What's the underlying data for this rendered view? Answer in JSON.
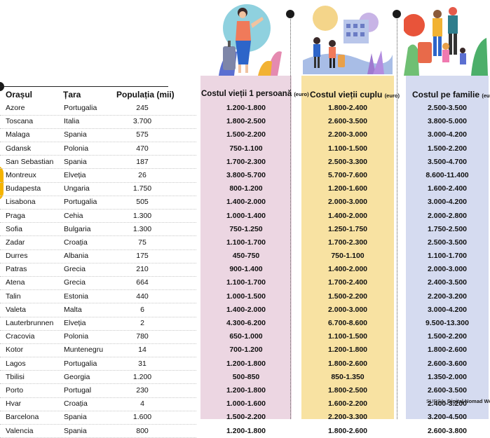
{
  "headers": {
    "city": "Orașul",
    "country": "Țara",
    "population": "Populația (mii)",
    "single": "Costul vieții 1 persoană",
    "couple": "Costul vieții cuplu",
    "family": "Costul pe familie",
    "unit": "(euro)"
  },
  "rows": [
    {
      "city": "Azore",
      "country": "Portugalia",
      "population": "245",
      "single": "1.200-1.800",
      "couple": "1.800-2.400",
      "family": "2.500-3.500"
    },
    {
      "city": "Toscana",
      "country": "Italia",
      "population": "3.700",
      "single": "1.800-2.500",
      "couple": "2.600-3.500",
      "family": "3.800-5.000"
    },
    {
      "city": "Malaga",
      "country": "Spania",
      "population": "575",
      "single": "1.500-2.200",
      "couple": "2.200-3.000",
      "family": "3.000-4.200"
    },
    {
      "city": "Gdansk",
      "country": "Polonia",
      "population": "470",
      "single": "750-1.100",
      "couple": "1.100-1.500",
      "family": "1.500-2.200"
    },
    {
      "city": "San Sebastian",
      "country": "Spania",
      "population": "187",
      "single": "1.700-2.300",
      "couple": "2.500-3.300",
      "family": "3.500-4.700"
    },
    {
      "city": "Montreux",
      "country": "Elveția",
      "population": "26",
      "single": "3.800-5.700",
      "couple": "5.700-7.600",
      "family": "8.600-11.400"
    },
    {
      "city": "Budapesta",
      "country": "Ungaria",
      "population": "1.750",
      "single": "800-1.200",
      "couple": "1.200-1.600",
      "family": "1.600-2.400"
    },
    {
      "city": "Lisabona",
      "country": "Portugalia",
      "population": "505",
      "single": "1.400-2.000",
      "couple": "2.000-3.000",
      "family": "3.000-4.200"
    },
    {
      "city": "Praga",
      "country": "Cehia",
      "population": "1.300",
      "single": "1.000-1.400",
      "couple": "1.400-2.000",
      "family": "2.000-2.800"
    },
    {
      "city": "Sofia",
      "country": "Bulgaria",
      "population": "1.300",
      "single": "750-1.250",
      "couple": "1.250-1.750",
      "family": "1.750-2.500"
    },
    {
      "city": "Zadar",
      "country": "Croația",
      "population": "75",
      "single": "1.100-1.700",
      "couple": "1.700-2.300",
      "family": "2.500-3.500"
    },
    {
      "city": "Durres",
      "country": "Albania",
      "population": "175",
      "single": "450-750",
      "couple": "750-1.100",
      "family": "1.100-1.700"
    },
    {
      "city": "Patras",
      "country": "Grecia",
      "population": "210",
      "single": "900-1.400",
      "couple": "1.400-2.000",
      "family": "2.000-3.000"
    },
    {
      "city": "Atena",
      "country": "Grecia",
      "population": "664",
      "single": "1.100-1.700",
      "couple": "1.700-2.400",
      "family": "2.400-3.500"
    },
    {
      "city": "Talin",
      "country": "Estonia",
      "population": "440",
      "single": "1.000-1.500",
      "couple": "1.500-2.200",
      "family": "2.200-3.200"
    },
    {
      "city": "Valeta",
      "country": "Malta",
      "population": "6",
      "single": "1.400-2.000",
      "couple": "2.000-3.000",
      "family": "3.000-4.200"
    },
    {
      "city": "Lauterbrunnen",
      "country": "Elveția",
      "population": "2",
      "single": "4.300-6.200",
      "couple": "6.700-8.600",
      "family": "9.500-13.300"
    },
    {
      "city": "Cracovia",
      "country": "Polonia",
      "population": "780",
      "single": "650-1.000",
      "couple": "1.100-1.500",
      "family": "1.500-2.200"
    },
    {
      "city": "Kotor",
      "country": "Muntenegru",
      "population": "14",
      "single": "700-1.200",
      "couple": "1.200-1.800",
      "family": "1.800-2.600"
    },
    {
      "city": "Lagos",
      "country": "Portugalia",
      "population": "31",
      "single": "1.200-1.800",
      "couple": "1.800-2.600",
      "family": "2.600-3.600"
    },
    {
      "city": "Tbilisi",
      "country": "Georgia",
      "population": "1.200",
      "single": "500-850",
      "couple": "850-1.350",
      "family": "1.350-2.000"
    },
    {
      "city": "Porto",
      "country": "Portugal",
      "population": "230",
      "single": "1.200-1.800",
      "couple": "1.800-2.500",
      "family": "2.600-3.500"
    },
    {
      "city": "Hvar",
      "country": "Croația",
      "population": "4",
      "single": "1.000-1.600",
      "couple": "1.600-2.200",
      "family": "2.400-3.200"
    },
    {
      "city": "Barcelona",
      "country": "Spania",
      "population": "1.600",
      "single": "1.500-2.200",
      "couple": "2.200-3.300",
      "family": "3.200-4.500"
    },
    {
      "city": "Valencia",
      "country": "Spania",
      "population": "800",
      "single": "1.200-1.800",
      "couple": "1.800-2.600",
      "family": "2.600-3.800"
    }
  ],
  "source": {
    "label": "SURSA:",
    "name": "Digital Nomad World"
  },
  "colors": {
    "single_bg": "#ecd6e2",
    "couple_bg": "#f8e2a2",
    "family_bg": "#d5dbf0"
  },
  "icons": {
    "single": "woman-with-suitcase-illustration",
    "couple": "couple-traveling-illustration",
    "family": "family-travel-illustration"
  }
}
